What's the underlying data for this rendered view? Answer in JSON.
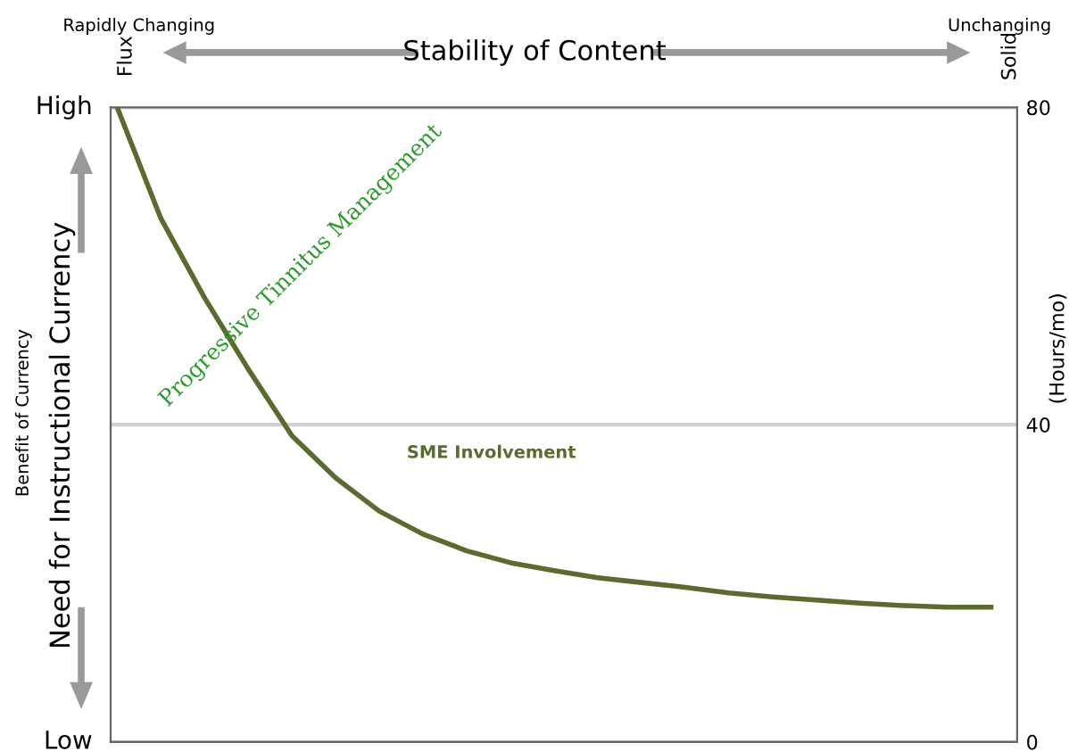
{
  "chart_data": {
    "type": "line",
    "xlabel": "Stability of Content",
    "ylabel": "(Hours/mo)",
    "annotations": [
      "Rapidly Changing",
      "Unchanging",
      "Flux",
      "Solid",
      "Benefit of Currency",
      "Progressive Tinnitus Management",
      "SME Involvement",
      "High",
      "Low",
      "Need for Instructional Currency"
    ],
    "categories": [
      null,
      null,
      null,
      null,
      null,
      null,
      null,
      null,
      null,
      null,
      null,
      null,
      null,
      null,
      null,
      null,
      null,
      null,
      null,
      null,
      null
    ],
    "series": [
      {
        "color": "#5b6a2f",
        "values": [
          80,
          66,
          56,
          47,
          38.6,
          33.3,
          29.1,
          26.2,
          24.1,
          22.6,
          21.6,
          20.7,
          20.1,
          19.5,
          18.8,
          18.3,
          17.9,
          17.5,
          17.2,
          17.0,
          17.0
        ]
      }
    ],
    "ylim": [
      0,
      80
    ],
    "yticks": [
      0,
      40,
      80
    ],
    "grid": "y",
    "marker": "none",
    "line_style": "solid"
  }
}
